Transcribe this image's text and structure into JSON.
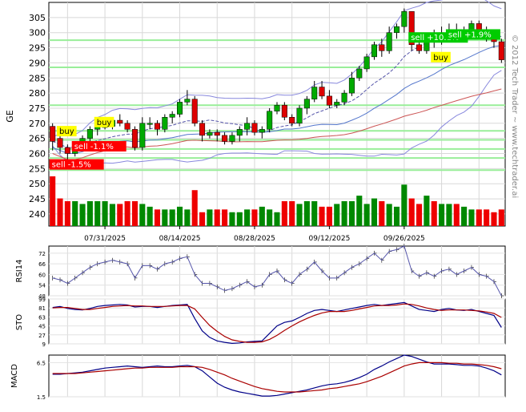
{
  "symbol": "GE",
  "watermark": "© 2012 Tech Trader ~ www.techtrader.ai",
  "chart_data": [
    {
      "type": "candlestick",
      "panel": "price",
      "ylabel": "GE",
      "ylim": [
        236,
        310
      ],
      "yticks": [
        240,
        245,
        250,
        255,
        260,
        265,
        270,
        275,
        280,
        285,
        290,
        295,
        300,
        305
      ],
      "xticks": [
        "07/31/2025",
        "08/14/2025",
        "08/28/2025",
        "09/12/2025",
        "09/26/2025"
      ],
      "xtick_index": [
        7,
        17,
        27,
        37,
        47
      ],
      "days": 61,
      "candles": [
        [
          269,
          264,
          270,
          261
        ],
        [
          265,
          262,
          266,
          260
        ],
        [
          262,
          260,
          263,
          258
        ],
        [
          260,
          262,
          263,
          259
        ],
        [
          262,
          265,
          266,
          261
        ],
        [
          265,
          268,
          269,
          264
        ],
        [
          268,
          269,
          270,
          266
        ],
        [
          269,
          269,
          272,
          268
        ],
        [
          269,
          271,
          272,
          268
        ],
        [
          271,
          270,
          273,
          269
        ],
        [
          270,
          268,
          271,
          267
        ],
        [
          268,
          262,
          269,
          261
        ],
        [
          262,
          270,
          272,
          261
        ],
        [
          270,
          270,
          272,
          268
        ],
        [
          270,
          268,
          271,
          266
        ],
        [
          268,
          272,
          273,
          267
        ],
        [
          272,
          273,
          274,
          270
        ],
        [
          273,
          277,
          278,
          272
        ],
        [
          277,
          278,
          281,
          276
        ],
        [
          278,
          270,
          279,
          269
        ],
        [
          270,
          266,
          271,
          264
        ],
        [
          266,
          267,
          268,
          265
        ],
        [
          267,
          266,
          268,
          264
        ],
        [
          266,
          264,
          267,
          263
        ],
        [
          264,
          266,
          267,
          263
        ],
        [
          266,
          268,
          269,
          264
        ],
        [
          268,
          270,
          272,
          266
        ],
        [
          270,
          267,
          271,
          266
        ],
        [
          267,
          268,
          269,
          265
        ],
        [
          268,
          274,
          275,
          267
        ],
        [
          274,
          276,
          277,
          273
        ],
        [
          276,
          272,
          277,
          271
        ],
        [
          272,
          270,
          273,
          269
        ],
        [
          270,
          275,
          276,
          269
        ],
        [
          275,
          278,
          279,
          273
        ],
        [
          278,
          282,
          284,
          277
        ],
        [
          282,
          279,
          284,
          278
        ],
        [
          279,
          276,
          281,
          275
        ],
        [
          276,
          277,
          278,
          275
        ],
        [
          277,
          280,
          281,
          276
        ],
        [
          280,
          285,
          287,
          279
        ],
        [
          285,
          288,
          289,
          284
        ],
        [
          288,
          292,
          293,
          287
        ],
        [
          292,
          296,
          297,
          291
        ],
        [
          296,
          294,
          298,
          292
        ],
        [
          294,
          300,
          302,
          293
        ],
        [
          300,
          302,
          303,
          298
        ],
        [
          302,
          307,
          308,
          300
        ],
        [
          307,
          296,
          307,
          294
        ],
        [
          296,
          294,
          299,
          293
        ],
        [
          294,
          298,
          300,
          293
        ],
        [
          298,
          297,
          301,
          295
        ],
        [
          297,
          300,
          302,
          296
        ],
        [
          300,
          301,
          303,
          299
        ],
        [
          301,
          298,
          303,
          297
        ],
        [
          298,
          301,
          302,
          297
        ],
        [
          301,
          303,
          304,
          299
        ],
        [
          303,
          300,
          304,
          298
        ],
        [
          300,
          299,
          302,
          297
        ],
        [
          299,
          297,
          301,
          295
        ],
        [
          297,
          291,
          298,
          290
        ]
      ],
      "volume": [
        18,
        10,
        9,
        9,
        8,
        9,
        9,
        9,
        8,
        8,
        9,
        9,
        8,
        7,
        6,
        6,
        6,
        7,
        6,
        13,
        5,
        6,
        6,
        6,
        5,
        5,
        6,
        6,
        7,
        6,
        5,
        9,
        9,
        8,
        9,
        9,
        7,
        7,
        8,
        9,
        9,
        11,
        8,
        10,
        9,
        8,
        7,
        15,
        10,
        8,
        11,
        9,
        8,
        8,
        8,
        7,
        6,
        6,
        6,
        5,
        6
      ],
      "hlines": [
        297.5,
        288.5,
        276,
        267.5,
        264.5,
        261.5,
        258.5,
        254.5
      ],
      "annotations": [
        {
          "label": "buy",
          "idx": 1,
          "price": 267,
          "color": "#ffff00",
          "text_color": "#000000"
        },
        {
          "label": "buy",
          "idx": 6,
          "price": 270,
          "color": "#ffff00",
          "text_color": "#000000"
        },
        {
          "label": "sell -1.1%",
          "idx": 3,
          "price": 262,
          "color": "#ff0000",
          "text_color": "#ffffff"
        },
        {
          "label": "sell -1.5%",
          "idx": 0,
          "price": 256,
          "color": "#ff0000",
          "text_color": "#ffffff"
        },
        {
          "label": "sell +10.1%",
          "idx": 48,
          "price": 298,
          "color": "#00cc00",
          "text_color": "#ffffff"
        },
        {
          "label": "sell +1.9%",
          "idx": 53,
          "price": 299,
          "color": "#00cc00",
          "text_color": "#ffffff"
        },
        {
          "label": "buy",
          "idx": 51,
          "price": 291.5,
          "color": "#ffff00",
          "text_color": "#000000"
        }
      ]
    },
    {
      "type": "line",
      "panel": "rsi",
      "ylabel": "RSI14",
      "ylim": [
        48,
        76
      ],
      "yticks": [
        48,
        54,
        60,
        66,
        72
      ],
      "values": [
        58,
        57,
        55,
        58,
        61,
        64,
        66,
        67,
        68,
        67,
        66,
        58,
        65,
        65,
        63,
        66,
        67,
        69,
        70,
        60,
        55,
        55,
        53,
        51,
        52,
        54,
        56,
        53,
        54,
        60,
        62,
        57,
        55,
        60,
        63,
        67,
        62,
        58,
        58,
        61,
        64,
        66,
        69,
        72,
        68,
        73,
        74,
        76,
        62,
        59,
        61,
        59,
        62,
        63,
        60,
        62,
        64,
        60,
        59,
        56,
        47
      ]
    },
    {
      "type": "line",
      "panel": "sto",
      "ylabel": "STO",
      "ylim": [
        9,
        99
      ],
      "yticks": [
        9,
        27,
        45,
        63,
        81,
        99
      ],
      "series": [
        {
          "color": "#000088",
          "values": [
            82,
            84,
            80,
            78,
            77,
            80,
            84,
            86,
            87,
            88,
            87,
            83,
            84,
            84,
            82,
            84,
            86,
            87,
            88,
            60,
            35,
            22,
            15,
            12,
            10,
            11,
            13,
            14,
            15,
            30,
            45,
            52,
            55,
            62,
            70,
            76,
            78,
            76,
            74,
            77,
            80,
            83,
            86,
            88,
            86,
            88,
            90,
            92,
            85,
            78,
            76,
            74,
            78,
            80,
            77,
            76,
            78,
            74,
            70,
            66,
            42
          ]
        },
        {
          "color": "#aa0000",
          "values": [
            81,
            82,
            82,
            80,
            78,
            78,
            80,
            82,
            84,
            85,
            86,
            85,
            85,
            84,
            84,
            84,
            85,
            86,
            86,
            79,
            62,
            46,
            34,
            24,
            17,
            14,
            12,
            12,
            13,
            18,
            26,
            36,
            45,
            53,
            60,
            66,
            71,
            74,
            74,
            74,
            76,
            79,
            82,
            85,
            86,
            86,
            87,
            89,
            88,
            85,
            81,
            78,
            76,
            77,
            77,
            77,
            76,
            75,
            73,
            70,
            62
          ]
        }
      ]
    },
    {
      "type": "line",
      "panel": "macd",
      "ylabel": "MACD",
      "ylim": [
        1.5,
        7.6
      ],
      "yticks": [
        1.5,
        6.5
      ],
      "series": [
        {
          "color": "#000088",
          "values": [
            4.8,
            4.8,
            4.9,
            5.0,
            5.1,
            5.3,
            5.5,
            5.7,
            5.8,
            5.9,
            6.0,
            5.9,
            5.8,
            5.9,
            6.0,
            5.9,
            5.9,
            6.0,
            6.1,
            5.9,
            5.3,
            4.4,
            3.5,
            2.9,
            2.5,
            2.2,
            2.0,
            1.8,
            1.6,
            1.6,
            1.7,
            1.9,
            2.1,
            2.3,
            2.5,
            2.8,
            3.1,
            3.3,
            3.4,
            3.6,
            3.9,
            4.3,
            4.8,
            5.5,
            6.0,
            6.6,
            7.1,
            7.6,
            7.4,
            7.0,
            6.6,
            6.3,
            6.3,
            6.3,
            6.2,
            6.1,
            6.1,
            6.0,
            5.7,
            5.3,
            4.7
          ]
        },
        {
          "color": "#aa0000",
          "values": [
            4.9,
            4.9,
            4.9,
            4.9,
            5.0,
            5.1,
            5.2,
            5.3,
            5.4,
            5.5,
            5.6,
            5.7,
            5.7,
            5.8,
            5.8,
            5.8,
            5.8,
            5.9,
            5.9,
            5.9,
            5.8,
            5.5,
            5.1,
            4.7,
            4.2,
            3.8,
            3.4,
            3.0,
            2.7,
            2.5,
            2.3,
            2.2,
            2.2,
            2.2,
            2.3,
            2.4,
            2.5,
            2.7,
            2.8,
            3.0,
            3.2,
            3.4,
            3.7,
            4.1,
            4.5,
            5.0,
            5.5,
            6.0,
            6.3,
            6.5,
            6.5,
            6.5,
            6.5,
            6.4,
            6.4,
            6.3,
            6.3,
            6.2,
            6.1,
            5.9,
            5.6
          ]
        }
      ]
    }
  ]
}
